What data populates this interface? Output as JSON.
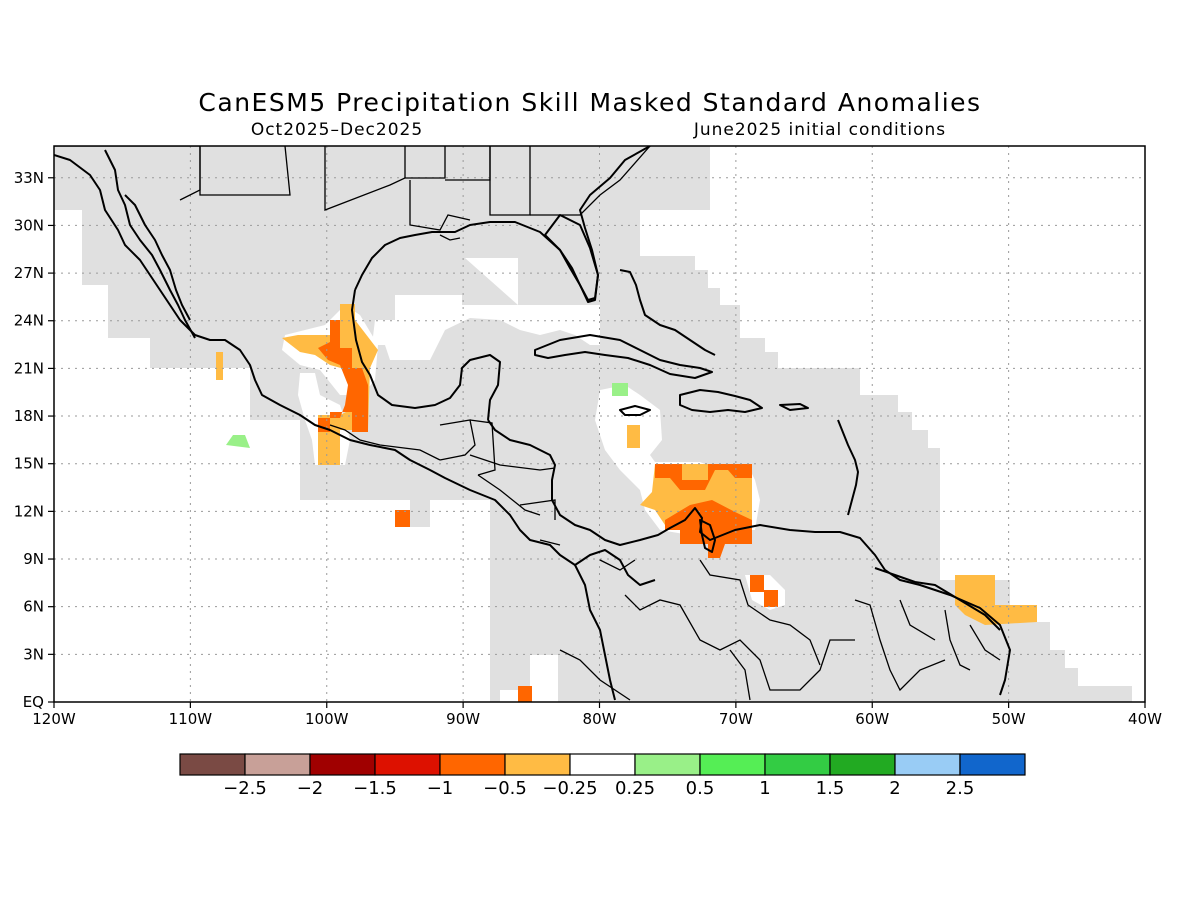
{
  "title": "CanESM5 Precipitation Skill Masked Standard Anomalies",
  "period": "Oct2025–Dec2025",
  "init": "June2025 initial conditions",
  "lon_labels": [
    "120W",
    "110W",
    "100W",
    "90W",
    "80W",
    "70W",
    "60W",
    "50W",
    "40W"
  ],
  "lat_labels": [
    "EQ",
    "3N",
    "6N",
    "9N",
    "12N",
    "15N",
    "18N",
    "21N",
    "24N",
    "27N",
    "30N",
    "33N"
  ],
  "colorbar": {
    "colors": [
      "#7a4a44",
      "#c8a098",
      "#a00000",
      "#dd1100",
      "#ff6600",
      "#ffbb44",
      "#ffffff",
      "#99f088",
      "#55ee55",
      "#33cc44",
      "#22aa22",
      "#99ccf5",
      "#1166cc"
    ],
    "labels": [
      "−2.5",
      "−2",
      "−1.5",
      "−1",
      "−0.5",
      "−0.25",
      "0.25",
      "0.5",
      "1",
      "1.5",
      "2",
      "2.5"
    ]
  },
  "colors": {
    "masked": "#e0e0e0",
    "neg_small": "#ffbb44",
    "neg_med": "#ff6600",
    "pos_small": "#99f088"
  }
}
